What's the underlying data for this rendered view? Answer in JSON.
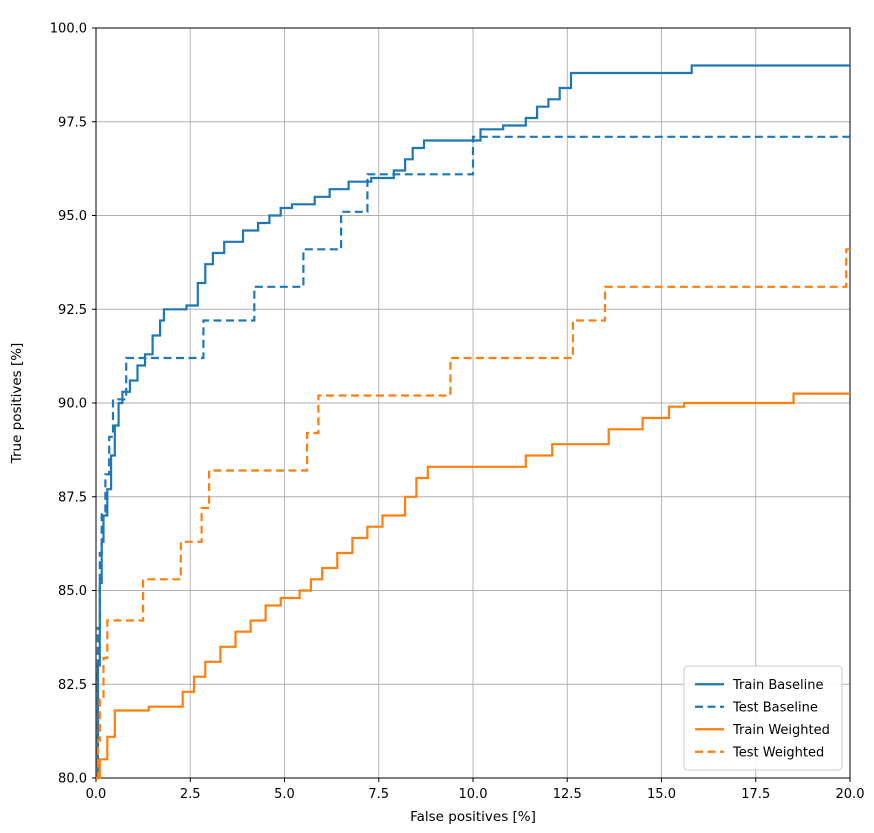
{
  "chart_data": {
    "type": "line",
    "subtype": "step-post",
    "title": "",
    "xlabel": "False positives [%]",
    "ylabel": "True positives [%]",
    "xlim": [
      0,
      20
    ],
    "ylim": [
      80,
      100
    ],
    "grid": true,
    "x_ticks": [
      0,
      2.5,
      5,
      7.5,
      10,
      12.5,
      15,
      17.5,
      20
    ],
    "x_tick_labels": [
      "0.0",
      "2.5",
      "5.0",
      "7.5",
      "10.0",
      "12.5",
      "15.0",
      "17.5",
      "20.0"
    ],
    "y_ticks": [
      80,
      82.5,
      85,
      87.5,
      90,
      92.5,
      95,
      97.5,
      100
    ],
    "y_tick_labels": [
      "80.0",
      "82.5",
      "85.0",
      "87.5",
      "90.0",
      "92.5",
      "95.0",
      "97.5",
      "100.0"
    ],
    "legend": {
      "position": "lower right"
    },
    "colors": {
      "baseline": "#1f77b4",
      "weighted": "#ff7f0e",
      "grid": "#b0b0b0",
      "spine": "#000000",
      "legend_edge": "#cccccc"
    },
    "series": [
      {
        "name": "Train Baseline",
        "color": "#1f77b4",
        "dash": false,
        "points": [
          [
            0,
            80.0
          ],
          [
            0.05,
            83.0
          ],
          [
            0.1,
            85.2
          ],
          [
            0.15,
            86.3
          ],
          [
            0.2,
            87.0
          ],
          [
            0.3,
            87.7
          ],
          [
            0.4,
            88.6
          ],
          [
            0.5,
            89.4
          ],
          [
            0.6,
            90.0
          ],
          [
            0.7,
            90.3
          ],
          [
            0.9,
            90.6
          ],
          [
            1.1,
            91.0
          ],
          [
            1.3,
            91.3
          ],
          [
            1.5,
            91.8
          ],
          [
            1.7,
            92.2
          ],
          [
            1.8,
            92.5
          ],
          [
            2.4,
            92.6
          ],
          [
            2.7,
            93.2
          ],
          [
            2.9,
            93.7
          ],
          [
            3.1,
            94.0
          ],
          [
            3.4,
            94.3
          ],
          [
            3.9,
            94.6
          ],
          [
            4.3,
            94.8
          ],
          [
            4.6,
            95.0
          ],
          [
            4.9,
            95.2
          ],
          [
            5.2,
            95.3
          ],
          [
            5.8,
            95.5
          ],
          [
            6.2,
            95.7
          ],
          [
            6.7,
            95.9
          ],
          [
            7.3,
            96.0
          ],
          [
            7.9,
            96.2
          ],
          [
            8.2,
            96.5
          ],
          [
            8.4,
            96.8
          ],
          [
            8.7,
            97.0
          ],
          [
            10.2,
            97.3
          ],
          [
            10.8,
            97.4
          ],
          [
            11.4,
            97.6
          ],
          [
            11.7,
            97.9
          ],
          [
            12.0,
            98.1
          ],
          [
            12.3,
            98.4
          ],
          [
            12.6,
            98.8
          ],
          [
            15.8,
            99.0
          ],
          [
            20,
            99.0
          ]
        ]
      },
      {
        "name": "Test Baseline",
        "color": "#1f77b4",
        "dash": true,
        "points": [
          [
            0,
            80.0
          ],
          [
            0.05,
            84.0
          ],
          [
            0.1,
            86.0
          ],
          [
            0.15,
            87.1
          ],
          [
            0.25,
            88.1
          ],
          [
            0.35,
            89.1
          ],
          [
            0.45,
            90.1
          ],
          [
            0.8,
            91.2
          ],
          [
            2.85,
            92.2
          ],
          [
            4.2,
            93.1
          ],
          [
            5.5,
            94.1
          ],
          [
            6.5,
            95.1
          ],
          [
            7.2,
            96.1
          ],
          [
            10.0,
            97.1
          ],
          [
            20,
            97.1
          ]
        ]
      },
      {
        "name": "Train Weighted",
        "color": "#ff7f0e",
        "dash": false,
        "points": [
          [
            0,
            80.0
          ],
          [
            0.1,
            80.5
          ],
          [
            0.3,
            81.1
          ],
          [
            0.5,
            81.8
          ],
          [
            1.4,
            81.9
          ],
          [
            2.3,
            82.3
          ],
          [
            2.6,
            82.7
          ],
          [
            2.9,
            83.1
          ],
          [
            3.3,
            83.5
          ],
          [
            3.7,
            83.9
          ],
          [
            4.1,
            84.2
          ],
          [
            4.5,
            84.6
          ],
          [
            4.9,
            84.8
          ],
          [
            5.4,
            85.0
          ],
          [
            5.7,
            85.3
          ],
          [
            6.0,
            85.6
          ],
          [
            6.4,
            86.0
          ],
          [
            6.8,
            86.4
          ],
          [
            7.2,
            86.7
          ],
          [
            7.6,
            87.0
          ],
          [
            8.2,
            87.5
          ],
          [
            8.5,
            88.0
          ],
          [
            8.8,
            88.3
          ],
          [
            11.4,
            88.6
          ],
          [
            12.1,
            88.9
          ],
          [
            13.6,
            89.3
          ],
          [
            14.5,
            89.6
          ],
          [
            15.2,
            89.9
          ],
          [
            15.6,
            90.0
          ],
          [
            18.5,
            90.25
          ],
          [
            20,
            90.25
          ]
        ]
      },
      {
        "name": "Test Weighted",
        "color": "#ff7f0e",
        "dash": true,
        "points": [
          [
            0,
            80.0
          ],
          [
            0.05,
            81.0
          ],
          [
            0.1,
            82.1
          ],
          [
            0.2,
            83.2
          ],
          [
            0.3,
            84.2
          ],
          [
            1.25,
            85.3
          ],
          [
            2.25,
            86.3
          ],
          [
            2.8,
            87.2
          ],
          [
            3.0,
            88.2
          ],
          [
            5.6,
            89.2
          ],
          [
            5.9,
            90.2
          ],
          [
            9.4,
            91.2
          ],
          [
            12.65,
            92.2
          ],
          [
            13.5,
            93.1
          ],
          [
            19.9,
            94.1
          ],
          [
            20,
            94.1
          ]
        ]
      }
    ]
  }
}
